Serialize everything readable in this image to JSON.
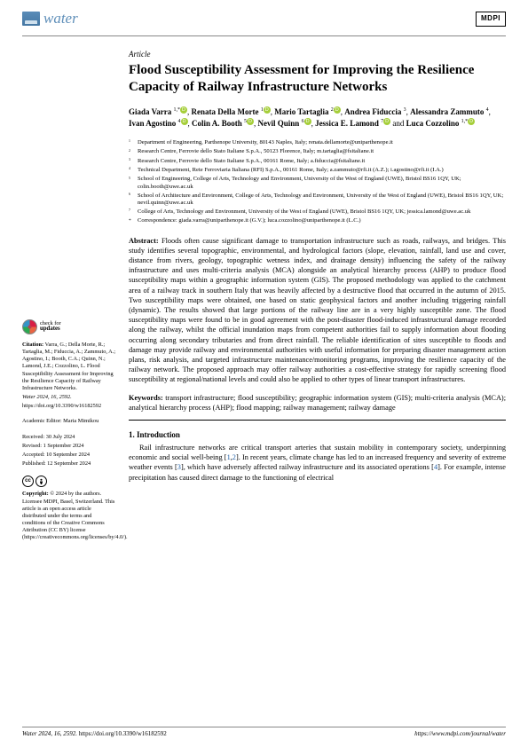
{
  "journal": {
    "name": "water",
    "publisher": "MDPI"
  },
  "article": {
    "type": "Article",
    "title": "Flood Susceptibility Assessment for Improving the Resilience Capacity of Railway Infrastructure Networks"
  },
  "authors": [
    {
      "name": "Giada Varra",
      "sup": "1,*",
      "orcid": true
    },
    {
      "name": "Renata Della Morte",
      "sup": "1",
      "orcid": true
    },
    {
      "name": "Mario Tartaglia",
      "sup": "2",
      "orcid": true
    },
    {
      "name": "Andrea Fiduccia",
      "sup": "3"
    },
    {
      "name": "Alessandra Zammuto",
      "sup": "4"
    },
    {
      "name": "Ivan Agostino",
      "sup": "4",
      "orcid": true
    },
    {
      "name": "Colin A. Booth",
      "sup": "5",
      "orcid": true
    },
    {
      "name": "Nevil Quinn",
      "sup": "6",
      "orcid": true
    },
    {
      "name": "Jessica E. Lamond",
      "sup": "7",
      "orcid": true
    },
    {
      "name": "Luca Cozzolino",
      "sup": "1,*",
      "orcid": true
    }
  ],
  "affiliations": [
    {
      "num": "1",
      "text": "Department of Engineering, Parthenope University, 80143 Naples, Italy; renata.dellamorte@uniparthenope.it"
    },
    {
      "num": "2",
      "text": "Research Centre, Ferrovie dello Stato Italiane S.p.A., 50123 Florence, Italy; m.tartaglia@fsitaliane.it"
    },
    {
      "num": "3",
      "text": "Research Centre, Ferrovie dello Stato Italiane S.p.A., 00161 Rome, Italy; a.fiduccia@fsitaliane.it"
    },
    {
      "num": "4",
      "text": "Technical Department, Rete Ferroviaria Italiana (RFI) S.p.A., 00161 Rome, Italy; a.zammuto@rfi.it (A.Z.); i.agostino@rfi.it (I.A.)"
    },
    {
      "num": "5",
      "text": "School of Engineering, College of Arts, Technology and Environment, University of the West of England (UWE), Bristol BS16 1QY, UK; colin.booth@uwe.ac.uk"
    },
    {
      "num": "6",
      "text": "School of Architecture and Environment, College of Arts, Technology and Environment, University of the West of England (UWE), Bristol BS16 1QY, UK; nevil.quinn@uwe.ac.uk"
    },
    {
      "num": "7",
      "text": "College of Arts, Technology and Environment, University of the West of England (UWE), Bristol BS16 1QY, UK; jessica.lamond@uwe.ac.uk"
    },
    {
      "num": "*",
      "text": "Correspondence: giada.varra@uniparthenope.it (G.V.); luca.cozzolino@uniparthenope.it (L.C.)"
    }
  ],
  "abstract": {
    "label": "Abstract:",
    "text": "Floods often cause significant damage to transportation infrastructure such as roads, railways, and bridges. This study identifies several topographic, environmental, and hydrological factors (slope, elevation, rainfall, land use and cover, distance from rivers, geology, topographic wetness index, and drainage density) influencing the safety of the railway infrastructure and uses multi-criteria analysis (MCA) alongside an analytical hierarchy process (AHP) to produce flood susceptibility maps within a geographic information system (GIS). The proposed methodology was applied to the catchment area of a railway track in southern Italy that was heavily affected by a destructive flood that occurred in the autumn of 2015. Two susceptibility maps were obtained, one based on static geophysical factors and another including triggering rainfall (dynamic). The results showed that large portions of the railway line are in a very highly susceptible zone. The flood susceptibility maps were found to be in good agreement with the post-disaster flood-induced infrastructural damage recorded along the railway, whilst the official inundation maps from competent authorities fail to supply information about flooding occurring along secondary tributaries and from direct rainfall. The reliable identification of sites susceptible to floods and damage may provide railway and environmental authorities with useful information for preparing disaster management action plans, risk analysis, and targeted infrastructure maintenance/monitoring programs, improving the resilience capacity of the railway network. The proposed approach may offer railway authorities a cost-effective strategy for rapidly screening flood susceptibility at regional/national levels and could also be applied to other types of linear transport infrastructures."
  },
  "keywords": {
    "label": "Keywords:",
    "text": "transport infrastructure; flood susceptibility; geographic information system (GIS); multi-criteria analysis (MCA); analytical hierarchy process (AHP); flood mapping; railway management; railway damage"
  },
  "sidebar": {
    "check": {
      "line1": "check for",
      "line2": "updates"
    },
    "citation": {
      "label": "Citation:",
      "text": "Varra, G.; Della Morte, R.; Tartaglia, M.; Fiduccia, A.; Zammuto, A.; Agostino, I.; Booth, C.A.; Quinn, N.; Lamond, J.E.; Cozzolino, L. Flood Susceptibility Assessment for Improving the Resilience Capacity of Railway Infrastructure Networks.",
      "ref": "Water 2024, 16, 2592.",
      "doi": "https://doi.org/10.3390/w16182592"
    },
    "editor": {
      "label": "Academic Editor:",
      "name": "Maria Mimikou"
    },
    "dates": {
      "received": "Received: 30 July 2024",
      "revised": "Revised: 1 September 2024",
      "accepted": "Accepted: 10 September 2024",
      "published": "Published: 12 September 2024"
    },
    "copyright": {
      "label": "Copyright:",
      "text": " © 2024 by the authors. Licensee MDPI, Basel, Switzerland. This article is an open access article distributed under the terms and conditions of the Creative Commons Attribution (CC BY) license (https://creativecommons.org/licenses/by/4.0/)."
    },
    "cc_glyphs": {
      "cc": "cc",
      "by": "🄯"
    }
  },
  "intro": {
    "heading": "1. Introduction",
    "text_pre": "Rail infrastructure networks are critical transport arteries that sustain mobility in contemporary society, underpinning economic and social well-being [",
    "ref1": "1",
    "ref2": "2",
    "text_mid": "]. In recent years, climate change has led to an increased frequency and severity of extreme weather events [",
    "ref3": "3",
    "text_mid2": "], which have adversely affected railway infrastructure and its associated operations [",
    "ref4": "4",
    "text_end": "]. For example, intense precipitation has caused direct damage to the functioning of electrical"
  },
  "footer": {
    "left": "Water 2024, 16, 2592.",
    "doi": "https://doi.org/10.3390/w16182592",
    "right": "https://www.mdpi.com/journal/water"
  }
}
